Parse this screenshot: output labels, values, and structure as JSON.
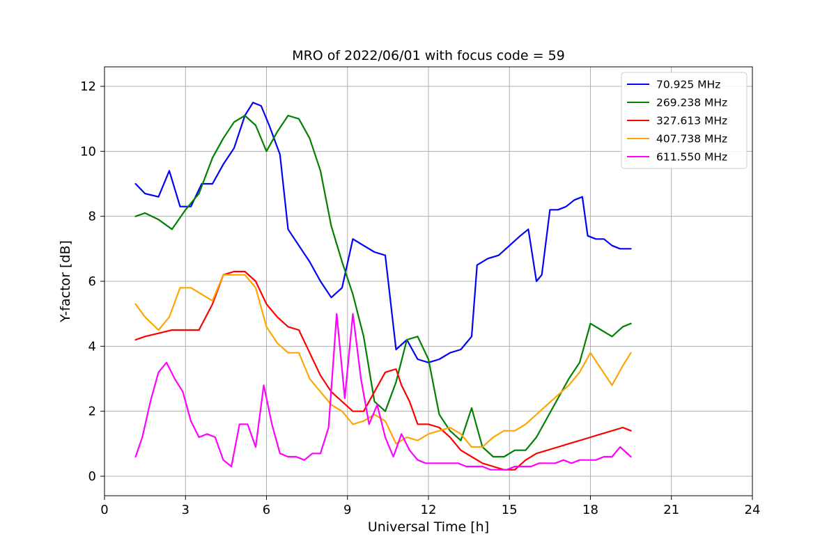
{
  "chart_data": {
    "type": "line",
    "title": "MRO of 2022/06/01 with focus code = 59",
    "xlabel": "Universal Time [h]",
    "ylabel": "Y-factor [dB]",
    "xlim": [
      0,
      24
    ],
    "ylim": [
      -0.6,
      12.6
    ],
    "xticks": [
      0,
      3,
      6,
      9,
      12,
      15,
      18,
      21,
      24
    ],
    "yticks": [
      0,
      2,
      4,
      6,
      8,
      10,
      12
    ],
    "grid": true,
    "legend_position": "top-right",
    "series": [
      {
        "name": " 70.925 MHz",
        "color": "#0000ff",
        "x": [
          1.15,
          1.5,
          2.0,
          2.4,
          2.8,
          3.2,
          3.6,
          4.0,
          4.4,
          4.8,
          5.2,
          5.5,
          5.8,
          6.1,
          6.5,
          6.8,
          7.2,
          7.6,
          8.0,
          8.4,
          8.8,
          9.2,
          9.6,
          10.0,
          10.4,
          10.8,
          11.2,
          11.6,
          12.0,
          12.4,
          12.8,
          13.2,
          13.6,
          13.8,
          14.2,
          14.6,
          15.0,
          15.4,
          15.7,
          16.0,
          16.2,
          16.5,
          16.8,
          17.1,
          17.4,
          17.7,
          17.9,
          18.2,
          18.5,
          18.8,
          19.1,
          19.5
        ],
        "values": [
          9.0,
          8.7,
          8.6,
          9.4,
          8.3,
          8.3,
          9.0,
          9.0,
          9.6,
          10.1,
          11.1,
          11.5,
          11.4,
          10.8,
          9.9,
          7.6,
          7.1,
          6.6,
          6.0,
          5.5,
          5.8,
          7.3,
          7.1,
          6.9,
          6.8,
          3.9,
          4.2,
          3.6,
          3.5,
          3.6,
          3.8,
          3.9,
          4.3,
          6.5,
          6.7,
          6.8,
          7.1,
          7.4,
          7.6,
          6.0,
          6.2,
          8.2,
          8.2,
          8.3,
          8.5,
          8.6,
          7.4,
          7.3,
          7.3,
          7.1,
          7.0,
          7.0
        ]
      },
      {
        "name": "269.238 MHz",
        "color": "#008000",
        "x": [
          1.15,
          1.5,
          2.0,
          2.5,
          3.0,
          3.5,
          4.0,
          4.4,
          4.8,
          5.2,
          5.6,
          6.0,
          6.4,
          6.8,
          7.2,
          7.6,
          8.0,
          8.4,
          8.8,
          9.2,
          9.6,
          10.0,
          10.4,
          10.8,
          11.2,
          11.6,
          12.0,
          12.4,
          12.8,
          13.2,
          13.6,
          14.0,
          14.4,
          14.8,
          15.2,
          15.6,
          16.0,
          16.4,
          16.8,
          17.2,
          17.6,
          18.0,
          18.4,
          18.8,
          19.2,
          19.5
        ],
        "values": [
          8.0,
          8.1,
          7.9,
          7.6,
          8.2,
          8.7,
          9.8,
          10.4,
          10.9,
          11.1,
          10.8,
          10.0,
          10.6,
          11.1,
          11.0,
          10.4,
          9.4,
          7.7,
          6.6,
          5.6,
          4.3,
          2.3,
          2.0,
          2.9,
          4.2,
          4.3,
          3.6,
          1.9,
          1.4,
          1.1,
          2.1,
          0.9,
          0.6,
          0.6,
          0.8,
          0.8,
          1.2,
          1.8,
          2.4,
          3.0,
          3.5,
          4.7,
          4.5,
          4.3,
          4.6,
          4.7
        ]
      },
      {
        "name": "327.613 MHz",
        "color": "#ff0000",
        "x": [
          1.15,
          1.5,
          2.0,
          2.5,
          3.0,
          3.5,
          4.0,
          4.4,
          4.8,
          5.2,
          5.6,
          6.0,
          6.4,
          6.8,
          7.2,
          7.6,
          8.0,
          8.4,
          8.8,
          9.2,
          9.6,
          10.0,
          10.4,
          10.8,
          11.0,
          11.3,
          11.6,
          12.0,
          12.4,
          12.8,
          13.2,
          13.6,
          14.0,
          14.4,
          14.8,
          15.2,
          15.6,
          16.0,
          16.4,
          16.8,
          17.2,
          17.6,
          18.0,
          18.4,
          18.8,
          19.2,
          19.5
        ],
        "values": [
          4.2,
          4.3,
          4.4,
          4.5,
          4.5,
          4.5,
          5.3,
          6.2,
          6.3,
          6.3,
          6.0,
          5.3,
          4.9,
          4.6,
          4.5,
          3.8,
          3.1,
          2.6,
          2.3,
          2.0,
          2.0,
          2.6,
          3.2,
          3.3,
          2.8,
          2.3,
          1.6,
          1.6,
          1.5,
          1.2,
          0.8,
          0.6,
          0.4,
          0.3,
          0.2,
          0.2,
          0.5,
          0.7,
          0.8,
          0.9,
          1.0,
          1.1,
          1.2,
          1.3,
          1.4,
          1.5,
          1.4
        ]
      },
      {
        "name": "407.738 MHz",
        "color": "#ffa500",
        "x": [
          1.15,
          1.5,
          2.0,
          2.4,
          2.8,
          3.2,
          3.6,
          4.0,
          4.4,
          4.8,
          5.2,
          5.6,
          6.0,
          6.4,
          6.8,
          7.2,
          7.6,
          8.0,
          8.4,
          8.8,
          9.2,
          9.6,
          10.0,
          10.4,
          10.8,
          11.2,
          11.6,
          12.0,
          12.4,
          12.8,
          13.2,
          13.6,
          14.0,
          14.4,
          14.8,
          15.2,
          15.6,
          16.0,
          16.4,
          16.8,
          17.2,
          17.6,
          18.0,
          18.4,
          18.8,
          19.2,
          19.5
        ],
        "values": [
          5.3,
          4.9,
          4.5,
          4.9,
          5.8,
          5.8,
          5.6,
          5.4,
          6.2,
          6.2,
          6.2,
          5.8,
          4.6,
          4.1,
          3.8,
          3.8,
          3.0,
          2.6,
          2.2,
          2.0,
          1.6,
          1.7,
          1.9,
          1.7,
          1.0,
          1.2,
          1.1,
          1.3,
          1.4,
          1.5,
          1.3,
          0.9,
          0.9,
          1.2,
          1.4,
          1.4,
          1.6,
          1.9,
          2.2,
          2.5,
          2.8,
          3.2,
          3.8,
          3.3,
          2.8,
          3.4,
          3.8
        ]
      },
      {
        "name": "611.550 MHz",
        "color": "#ff00ff",
        "x": [
          1.15,
          1.4,
          1.7,
          2.0,
          2.3,
          2.6,
          2.9,
          3.2,
          3.5,
          3.8,
          4.1,
          4.4,
          4.7,
          5.0,
          5.3,
          5.6,
          5.9,
          6.2,
          6.5,
          6.8,
          7.1,
          7.4,
          7.7,
          8.0,
          8.3,
          8.6,
          8.9,
          9.2,
          9.5,
          9.8,
          10.1,
          10.4,
          10.7,
          11.0,
          11.3,
          11.6,
          11.9,
          12.2,
          12.5,
          12.8,
          13.1,
          13.4,
          13.7,
          14.0,
          14.3,
          14.6,
          14.9,
          15.2,
          15.5,
          15.8,
          16.1,
          16.4,
          16.7,
          17.0,
          17.3,
          17.6,
          17.9,
          18.2,
          18.5,
          18.8,
          19.1,
          19.5
        ],
        "values": [
          0.6,
          1.2,
          2.3,
          3.2,
          3.5,
          3.0,
          2.6,
          1.7,
          1.2,
          1.3,
          1.2,
          0.5,
          0.3,
          1.6,
          1.6,
          0.9,
          2.8,
          1.6,
          0.7,
          0.6,
          0.6,
          0.5,
          0.7,
          0.7,
          1.5,
          5.0,
          2.4,
          5.0,
          3.0,
          1.6,
          2.2,
          1.2,
          0.6,
          1.3,
          0.8,
          0.5,
          0.4,
          0.4,
          0.4,
          0.4,
          0.4,
          0.3,
          0.3,
          0.3,
          0.2,
          0.2,
          0.2,
          0.3,
          0.3,
          0.3,
          0.4,
          0.4,
          0.4,
          0.5,
          0.4,
          0.5,
          0.5,
          0.5,
          0.6,
          0.6,
          0.9,
          0.6
        ]
      }
    ]
  }
}
